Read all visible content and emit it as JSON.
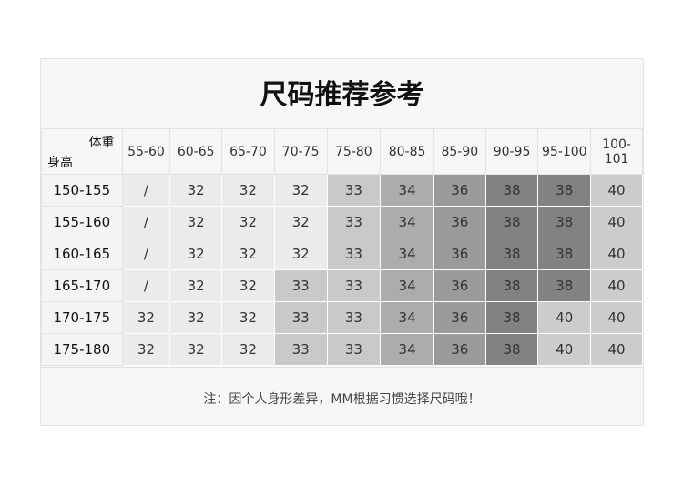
{
  "title": "尺码推荐参考",
  "corner": {
    "weight_label": "体重",
    "height_label": "身高"
  },
  "weight_columns": [
    "55-60",
    "60-65",
    "65-70",
    "70-75",
    "75-80",
    "80-85",
    "85-90",
    "90-95",
    "95-100",
    "100-101"
  ],
  "rows": [
    {
      "height": "150-155",
      "sizes": [
        "/",
        "32",
        "32",
        "32",
        "33",
        "34",
        "36",
        "38",
        "38",
        "40"
      ]
    },
    {
      "height": "155-160",
      "sizes": [
        "/",
        "32",
        "32",
        "32",
        "33",
        "34",
        "36",
        "38",
        "38",
        "40"
      ]
    },
    {
      "height": "160-165",
      "sizes": [
        "/",
        "32",
        "32",
        "32",
        "33",
        "34",
        "36",
        "38",
        "38",
        "40"
      ]
    },
    {
      "height": "165-170",
      "sizes": [
        "/",
        "32",
        "32",
        "33",
        "33",
        "34",
        "36",
        "38",
        "38",
        "40"
      ]
    },
    {
      "height": "170-175",
      "sizes": [
        "32",
        "32",
        "32",
        "33",
        "33",
        "34",
        "36",
        "38",
        "40",
        "40"
      ]
    },
    {
      "height": "175-180",
      "sizes": [
        "32",
        "32",
        "32",
        "33",
        "33",
        "34",
        "36",
        "38",
        "40",
        "40"
      ]
    }
  ],
  "size_colors": {
    "/": "#ebebeb",
    "32": "#ebebeb",
    "33": "#c9c9c9",
    "34": "#acacac",
    "36": "#9a9a9a",
    "38": "#828282",
    "40": "#cccccc"
  },
  "note": "注：因个人身形差异，MM根据习惯选择尺码哦！"
}
